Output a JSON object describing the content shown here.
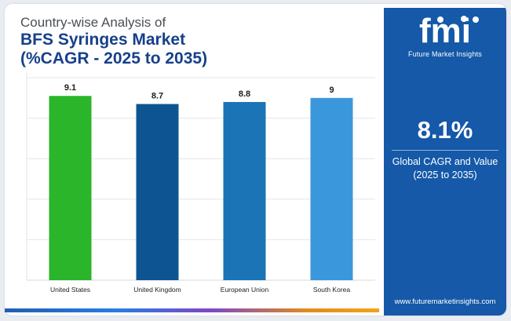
{
  "title": {
    "line1": "Country-wise Analysis of",
    "line2": "BFS Syringes Market",
    "line3": "(%CAGR - 2025 to 2035)"
  },
  "brand": {
    "logo_text": "fmi",
    "tagline": "Future Market Insights",
    "website": "www.futuremarketinsights.com"
  },
  "kpi": {
    "value": "8.1%",
    "label_line1": "Global CAGR and Value",
    "label_line2": "(2025 to 2035)"
  },
  "colors": {
    "panel": "#1559a8",
    "title": "#16408a",
    "bars": [
      "#2bb52b",
      "#0d5592",
      "#1a74b6",
      "#3b97db"
    ]
  },
  "chart_data": {
    "type": "bar",
    "categories": [
      "United States",
      "United Kingdom",
      "European Union",
      "South Korea"
    ],
    "values": [
      9.1,
      8.7,
      8.8,
      9
    ],
    "value_labels": [
      "9.1",
      "8.7",
      "8.8",
      "9"
    ],
    "ylim": [
      0,
      10
    ],
    "grid": true,
    "legend": false
  }
}
